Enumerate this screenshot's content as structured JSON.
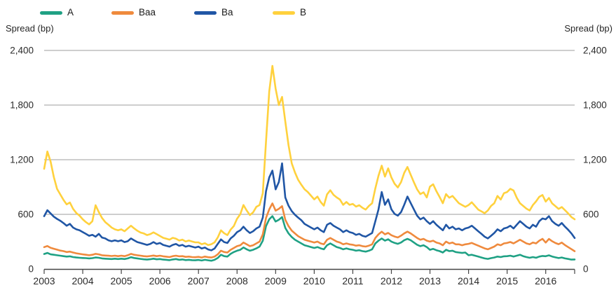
{
  "chart_data": {
    "type": "line",
    "title": "",
    "ylabel_left": "Spread (bp)",
    "ylabel_right": "Spread (bp)",
    "grid": true,
    "legend_position": "top",
    "ylim": [
      0,
      2400
    ],
    "y_ticks": [
      0,
      600,
      1200,
      1800,
      2400
    ],
    "y_tick_labels": [
      "0",
      "600",
      "1,200",
      "1,800",
      "2,400"
    ],
    "x_tick_labels": [
      "2003",
      "2004",
      "2005",
      "2006",
      "2007",
      "2008",
      "2009",
      "2010",
      "2011",
      "2012",
      "2013",
      "2014",
      "2015",
      "2016"
    ],
    "x_start": "2003-01",
    "x_end": "2016-10",
    "x_unit": "monthly",
    "series": [
      {
        "name": "A",
        "color": "#1FA184",
        "values": [
          165,
          176,
          161,
          156,
          151,
          146,
          141,
          136,
          139,
          131,
          126,
          123,
          121,
          119,
          116,
          119,
          126,
          123,
          116,
          113,
          111,
          109,
          113,
          109,
          113,
          109,
          116,
          129,
          121,
          116,
          111,
          106,
          103,
          107,
          113,
          106,
          109,
          103,
          101,
          97,
          105,
          109,
          101,
          105,
          98,
          101,
          97,
          95,
          99,
          93,
          101,
          95,
          91,
          101,
          121,
          156,
          141,
          136,
          166,
          186,
          201,
          211,
          236,
          216,
          201,
          211,
          226,
          246,
          311,
          471,
          545,
          580,
          521,
          541,
          570,
          451,
          391,
          351,
          321,
          301,
          281,
          261,
          251,
          241,
          231,
          241,
          226,
          216,
          261,
          281,
          261,
          241,
          231,
          216,
          226,
          216,
          211,
          201,
          206,
          196,
          191,
          201,
          216,
          281,
          311,
          335,
          311,
          326,
          301,
          286,
          276,
          291,
          316,
          331,
          316,
          291,
          266,
          251,
          261,
          241,
          211,
          221,
          206,
          196,
          181,
          211,
          196,
          201,
          186,
          181,
          176,
          181,
          151,
          156,
          146,
          136,
          126,
          116,
          111,
          119,
          126,
          136,
          131,
          139,
          141,
          146,
          136,
          146,
          156,
          141,
          131,
          123,
          131,
          123,
          136,
          143,
          140,
          150,
          137,
          128,
          120,
          126,
          116,
          110,
          103,
          105
        ]
      },
      {
        "name": "Baa",
        "color": "#EF8A3D",
        "values": [
          240,
          252,
          232,
          222,
          212,
          202,
          196,
          186,
          191,
          181,
          172,
          166,
          161,
          156,
          151,
          156,
          166,
          161,
          151,
          148,
          145,
          142,
          146,
          141,
          146,
          141,
          151,
          166,
          156,
          151,
          146,
          141,
          138,
          142,
          148,
          141,
          146,
          139,
          135,
          131,
          141,
          146,
          139,
          141,
          133,
          136,
          131,
          129,
          133,
          126,
          136,
          129,
          126,
          136,
          161,
          201,
          186,
          181,
          211,
          231,
          251,
          261,
          291,
          271,
          251,
          261,
          281,
          301,
          381,
          561,
          655,
          720,
          641,
          661,
          690,
          541,
          471,
          421,
          391,
          361,
          341,
          321,
          311,
          301,
          291,
          301,
          281,
          271,
          321,
          341,
          321,
          301,
          291,
          271,
          281,
          271,
          266,
          256,
          261,
          251,
          246,
          256,
          271,
          341,
          381,
          410,
          381,
          396,
          371,
          356,
          346,
          366,
          391,
          410,
          391,
          366,
          341,
          321,
          331,
          311,
          301,
          311,
          291,
          281,
          261,
          301,
          281,
          291,
          271,
          271,
          261,
          271,
          276,
          286,
          271,
          256,
          241,
          226,
          216,
          231,
          246,
          271,
          261,
          281,
          286,
          296,
          281,
          301,
          321,
          301,
          281,
          271,
          291,
          281,
          311,
          331,
          290,
          330,
          305,
          285,
          272,
          290,
          262,
          240,
          218,
          195
        ]
      },
      {
        "name": "Ba",
        "color": "#2056A5",
        "values": [
          580,
          645,
          610,
          575,
          550,
          530,
          505,
          475,
          495,
          455,
          435,
          425,
          405,
          385,
          365,
          375,
          355,
          385,
          345,
          335,
          315,
          305,
          315,
          305,
          315,
          295,
          305,
          335,
          315,
          295,
          285,
          275,
          265,
          275,
          295,
          275,
          285,
          265,
          255,
          245,
          265,
          275,
          255,
          265,
          245,
          255,
          245,
          235,
          245,
          225,
          235,
          215,
          205,
          225,
          275,
          325,
          295,
          285,
          335,
          365,
          405,
          425,
          465,
          425,
          395,
          415,
          445,
          465,
          565,
          855,
          1005,
          1080,
          875,
          955,
          1160,
          785,
          695,
          635,
          595,
          565,
          535,
          495,
          475,
          455,
          435,
          455,
          425,
          405,
          485,
          505,
          475,
          455,
          435,
          405,
          425,
          405,
          395,
          375,
          385,
          365,
          355,
          375,
          395,
          525,
          655,
          845,
          705,
          765,
          655,
          605,
          585,
          625,
          705,
          795,
          725,
          655,
          585,
          545,
          565,
          525,
          495,
          525,
          485,
          455,
          425,
          485,
          445,
          465,
          435,
          445,
          425,
          445,
          455,
          475,
          445,
          415,
          385,
          355,
          335,
          365,
          395,
          435,
          415,
          445,
          455,
          475,
          445,
          485,
          525,
          495,
          465,
          445,
          485,
          465,
          525,
          555,
          545,
          580,
          525,
          495,
          475,
          505,
          465,
          430,
          390,
          340
        ]
      },
      {
        "name": "B",
        "color": "#FFD13D",
        "values": [
          1100,
          1290,
          1180,
          1010,
          880,
          820,
          760,
          710,
          730,
          660,
          615,
          585,
          545,
          515,
          490,
          525,
          700,
          625,
          560,
          515,
          485,
          455,
          435,
          425,
          435,
          415,
          445,
          475,
          445,
          420,
          400,
          390,
          372,
          382,
          402,
          382,
          362,
          342,
          332,
          322,
          342,
          332,
          312,
          322,
          302,
          312,
          302,
          292,
          292,
          272,
          282,
          262,
          272,
          292,
          345,
          425,
          392,
          372,
          432,
          472,
          552,
          602,
          702,
          642,
          592,
          622,
          682,
          702,
          832,
          1400,
          1950,
          2230,
          1980,
          1800,
          1890,
          1620,
          1360,
          1160,
          1060,
          980,
          925,
          875,
          845,
          805,
          765,
          795,
          735,
          695,
          820,
          865,
          815,
          785,
          762,
          705,
          735,
          705,
          715,
          685,
          700,
          672,
          652,
          692,
          722,
          885,
          1025,
          1135,
          1015,
          1105,
          1005,
          935,
          895,
          955,
          1055,
          1120,
          1035,
          952,
          875,
          822,
          842,
          785,
          905,
          930,
          855,
          790,
          722,
          822,
          782,
          802,
          762,
          722,
          702,
          682,
          702,
          732,
          692,
          652,
          632,
          612,
          642,
          692,
          722,
          802,
          762,
          832,
          845,
          880,
          862,
          782,
          722,
          692,
          662,
          642,
          702,
          742,
          792,
          812,
          740,
          780,
          720,
          690,
          660,
          680,
          645,
          610,
          570,
          545
        ]
      }
    ]
  },
  "style": {
    "gridline_color": "#9E9E9E",
    "axis_color": "#444444",
    "tick_text_color": "#2B2B2B"
  }
}
